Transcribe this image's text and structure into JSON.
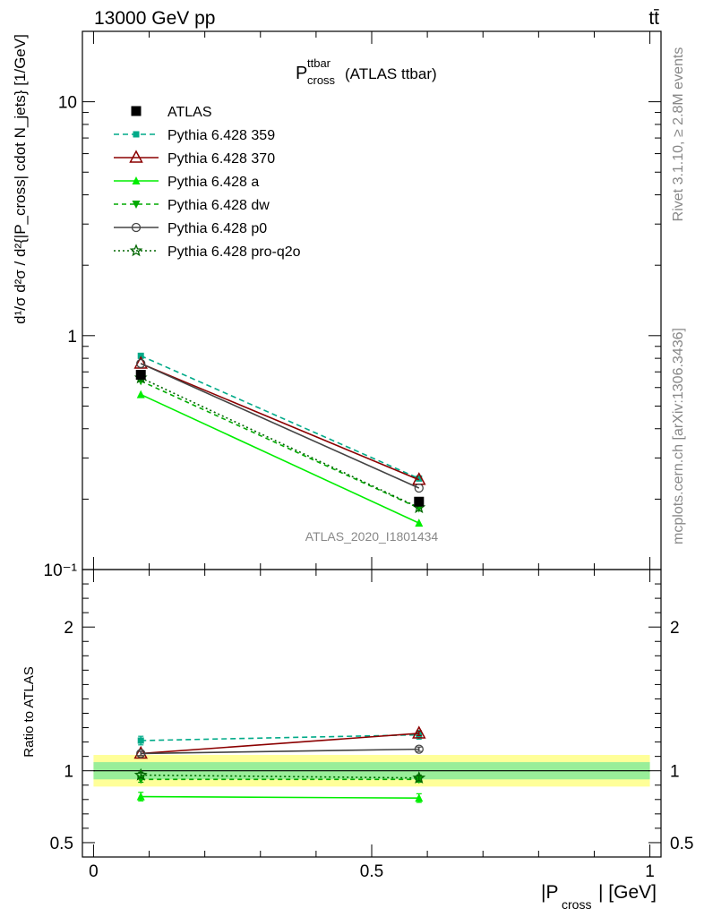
{
  "header": {
    "energy_label": "13000 GeV pp",
    "process_label": "tt̄"
  },
  "side_texts": {
    "rivet": "Rivet 3.1.10, ≥ 2.8M events",
    "mcplots": "mcplots.cern.ch [arXiv:1306.3436]"
  },
  "chart_data": [
    {
      "type": "line",
      "panel": "main",
      "title": "P",
      "title_sup": "ttbar",
      "title_sub": "cross",
      "title_suffix": "(ATLAS ttbar)",
      "watermark": "ATLAS_2020_I1801434",
      "ylabel": "d¹/σ d²σ / d²{|P_cross| cdot N_jets} [1/GeV]",
      "y_scale": "log",
      "ylim": [
        0.1,
        20
      ],
      "xlim": [
        -0.02,
        1.02
      ],
      "y_tick_labels": [
        "10⁻¹",
        "1",
        "10"
      ],
      "x": [
        0.085,
        0.585
      ],
      "series": [
        {
          "name": "ATLAS",
          "values": [
            0.68,
            0.195
          ],
          "color": "#000000",
          "marker": "square",
          "dash": "none",
          "is_data": true
        },
        {
          "name": "Pythia 6.428 359",
          "values": [
            0.82,
            0.245
          ],
          "color": "#00aa88",
          "marker": "square-small",
          "dash": "6,4"
        },
        {
          "name": "Pythia 6.428 370",
          "values": [
            0.76,
            0.242
          ],
          "color": "#8b0000",
          "marker": "triangle-open",
          "dash": "none"
        },
        {
          "name": "Pythia 6.428 a",
          "values": [
            0.56,
            0.158
          ],
          "color": "#00ee00",
          "marker": "triangle",
          "dash": "none"
        },
        {
          "name": "Pythia 6.428 dw",
          "values": [
            0.64,
            0.183
          ],
          "color": "#00aa00",
          "marker": "triangle-down",
          "dash": "5,4"
        },
        {
          "name": "Pythia 6.428 p0",
          "values": [
            0.76,
            0.223
          ],
          "color": "#444444",
          "marker": "circle-open",
          "dash": "none"
        },
        {
          "name": "Pythia 6.428 pro-q2o",
          "values": [
            0.66,
            0.184
          ],
          "color": "#006600",
          "marker": "star",
          "dash": "2,3"
        }
      ]
    },
    {
      "type": "line",
      "panel": "ratio",
      "ylabel": "Ratio to ATLAS",
      "xlabel": "|P",
      "xlabel_sub": "cross",
      "xlabel_suffix": "| [GeV]",
      "ylim": [
        0.4,
        2.4
      ],
      "xlim": [
        -0.02,
        1.02
      ],
      "y_tick_labels": [
        "0.5",
        "1",
        "2"
      ],
      "x_tick_labels": [
        "0",
        "0.5",
        "1"
      ],
      "bands": {
        "inner": 0.06,
        "outer": 0.11,
        "inner_color": "#99ee99",
        "outer_color": "#ffff99"
      },
      "x": [
        0.085,
        0.585
      ],
      "series": [
        {
          "name": "Pythia 6.428 359",
          "values": [
            1.21,
            1.25
          ],
          "color": "#00aa88",
          "marker": "square-small",
          "dash": "6,4",
          "err": 0.03
        },
        {
          "name": "Pythia 6.428 370",
          "values": [
            1.12,
            1.26
          ],
          "color": "#8b0000",
          "marker": "triangle-open",
          "dash": "none",
          "err": 0.015
        },
        {
          "name": "Pythia 6.428 a",
          "values": [
            0.82,
            0.81
          ],
          "color": "#00ee00",
          "marker": "triangle",
          "dash": "none",
          "err": 0.03
        },
        {
          "name": "Pythia 6.428 dw",
          "values": [
            0.94,
            0.94
          ],
          "color": "#00aa00",
          "marker": "triangle-down",
          "dash": "5,4",
          "err": 0.02
        },
        {
          "name": "Pythia 6.428 p0",
          "values": [
            1.12,
            1.15
          ],
          "color": "#444444",
          "marker": "circle-open",
          "dash": "none",
          "err": 0.015
        },
        {
          "name": "Pythia 6.428 pro-q2o",
          "values": [
            0.97,
            0.95
          ],
          "color": "#006600",
          "marker": "star",
          "dash": "2,3",
          "err": 0.02
        }
      ]
    }
  ]
}
